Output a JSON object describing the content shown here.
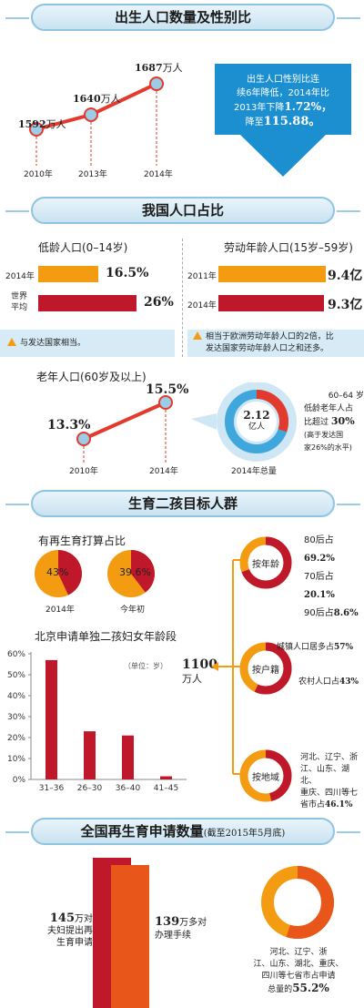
{
  "sec1": {
    "title": "出生人口数量及性别比",
    "points": [
      {
        "year": "2010年",
        "value": "1592",
        "unit": "万人"
      },
      {
        "year": "2013年",
        "value": "1640",
        "unit": "万人"
      },
      {
        "year": "2014年",
        "value": "1687",
        "unit": "万人"
      }
    ],
    "arrow_line1": "出生人口性别比连",
    "arrow_line2": "续6年降低，2014年比",
    "arrow_line3": "2013年下降",
    "arrow_pct": "1.72%，",
    "arrow_line4": "降至",
    "arrow_value": "115.88。"
  },
  "sec2": {
    "title": "我国人口占比",
    "young_title": "低龄人口(0–14岁)",
    "young_rows": [
      {
        "label": "2014年",
        "value": "16.5%"
      },
      {
        "label1": "世界",
        "label2": "平均",
        "value": "26%"
      }
    ],
    "young_note": "与发达国家相当。",
    "work_title": "劳动年龄人口(15岁–59岁)",
    "work_rows": [
      {
        "label": "2011年",
        "value": "9.4亿"
      },
      {
        "label": "2014年",
        "value": "9.3亿"
      }
    ],
    "work_note1": "相当于欧洲劳动年龄人口的2倍，比",
    "work_note2": "发达国家劳动年龄人口之和还多。",
    "old_title": "老年人口(60岁及以上)",
    "old_points": [
      {
        "year": "2010年",
        "value": "13.3%"
      },
      {
        "year": "2014年",
        "value": "15.5%"
      }
    ],
    "old_total_value": "2.12",
    "old_total_unit": "亿人",
    "old_total_caption": "2014年总量",
    "old_note1": "60–64 岁",
    "old_note2": "低龄老年人占",
    "old_note3": "比超过",
    "old_note_pct": "30%",
    "old_note4": "(高于发达国",
    "old_note5": "家26%的水平)"
  },
  "sec3": {
    "title": "生育二孩目标人群",
    "pie_title": "有再生育打算占比",
    "pies": [
      {
        "label": "2014年",
        "value": "43%",
        "pct": 43
      },
      {
        "label": "今年初",
        "value": "39.6%",
        "pct": 39.6
      }
    ],
    "bar_title": "北京申请单独二孩妇女年龄段",
    "bar_unit": "（单位：岁）",
    "center_value": "1100",
    "center_unit": "万人",
    "groups": [
      {
        "label": "按年龄",
        "items": [
          {
            "text": "80后占",
            "value": "69.2%"
          },
          {
            "text": "70后占",
            "value": "20.1%"
          },
          {
            "text": "90后占",
            "value": "8.6%"
          }
        ]
      },
      {
        "label": "按户籍",
        "items": [
          {
            "text": "城镇人口居多占",
            "value": "57%"
          },
          {
            "text": "农村人口占",
            "value": "43%"
          }
        ]
      },
      {
        "label": "按地域",
        "lines": [
          "河北、辽宁、浙",
          "江、山东、湖北、",
          "重庆、四川等七",
          "省市占"
        ],
        "value": "46.1%"
      }
    ]
  },
  "sec4": {
    "title": "全国再生育申请数量",
    "title_sub": "(截至2015年5月底)",
    "left_value": "145",
    "left_unit": "万对",
    "left_line1": "夫妇提出再",
    "left_line2": "生育申请",
    "right_value": "139",
    "right_unit": "万多对",
    "right_line1": "办理手续",
    "ring_line1": "河北、辽宁、浙",
    "ring_line2": "江、山东、湖北、重庆、",
    "ring_line3": "四川等七省市占申请",
    "ring_line4": "总量的",
    "ring_value": "55.2%"
  },
  "chart_data": [
    {
      "type": "line",
      "title": "出生人口数量及性别比",
      "categories": [
        "2010年",
        "2013年",
        "2014年"
      ],
      "series": [
        {
          "values": [
            1592,
            1640,
            1687
          ]
        }
      ]
    },
    {
      "type": "bar",
      "title": "低龄人口(0–14岁)",
      "categories": [
        "2014年",
        "世界平均"
      ],
      "values": [
        16.5,
        26
      ]
    },
    {
      "type": "bar",
      "title": "劳动年龄人口(15岁–59岁)",
      "categories": [
        "2011年",
        "2014年"
      ],
      "values": [
        9.4,
        9.3
      ]
    },
    {
      "type": "line",
      "title": "老年人口(60岁及以上)",
      "categories": [
        "2010年",
        "2014年"
      ],
      "series": [
        {
          "values": [
            13.3,
            15.5
          ]
        }
      ]
    },
    {
      "type": "pie",
      "title": "有再生育打算占比",
      "categories": [
        "2014年",
        "今年初"
      ],
      "values": [
        43,
        39.6
      ]
    },
    {
      "type": "bar",
      "title": "北京申请单独二孩妇女年龄段",
      "categories": [
        "31–36",
        "26–30",
        "36–40",
        "41–45"
      ],
      "values": [
        57,
        23,
        21,
        1.5
      ],
      "yticks": [
        "0%",
        "10%",
        "20%",
        "30%",
        "40%",
        "50%",
        "60%"
      ],
      "ylim": [
        0,
        60
      ]
    }
  ],
  "colors": {
    "red": "#c0182b",
    "orange": "#f39c12",
    "deep_orange": "#e8561a",
    "blue": "#1c8fd0",
    "light_blue": "#d7ebf7"
  }
}
